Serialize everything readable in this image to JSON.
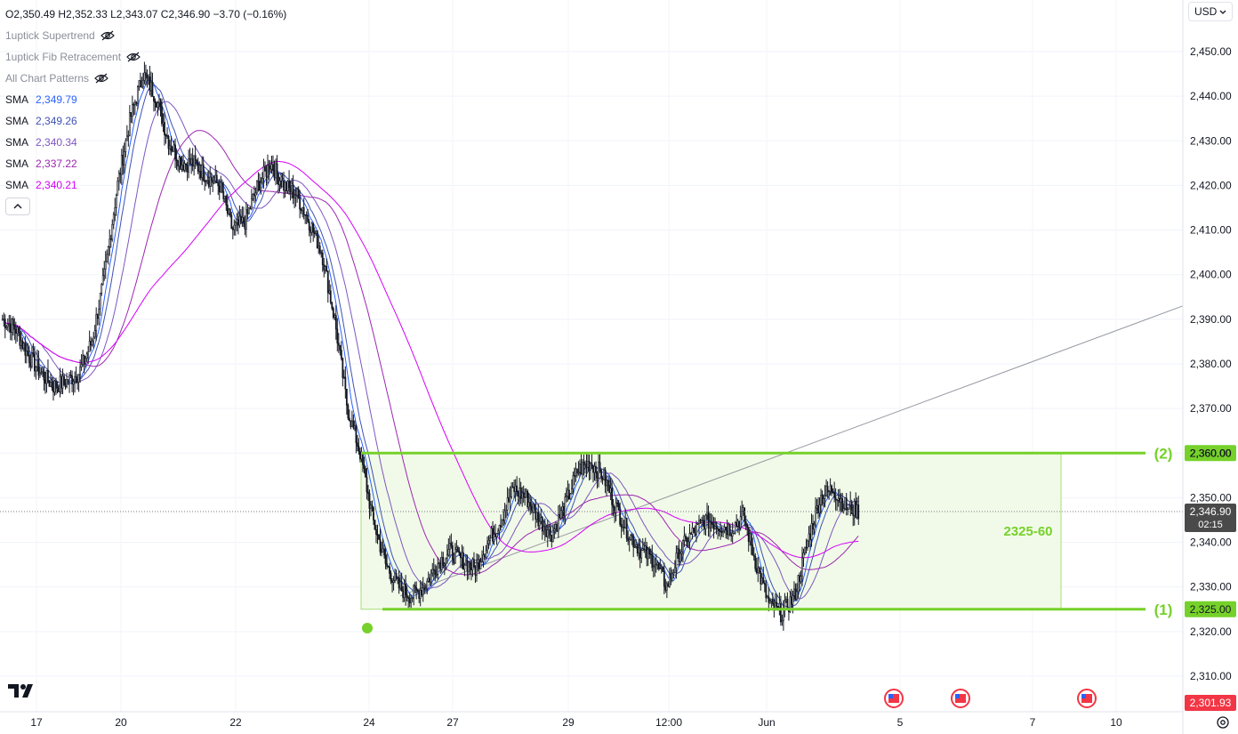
{
  "header": {
    "ohlc": "O2,350.49  H2,352.33  L2,343.07  C2,346.90  −3.70 (−0.16%)",
    "indicators": [
      "1uptick Supertrend",
      "1uptick Fib Retracement",
      "All Chart Patterns"
    ],
    "smas": [
      {
        "label": "SMA",
        "value": "2,349.79",
        "color": "#2962ff"
      },
      {
        "label": "SMA",
        "value": "2,349.26",
        "color": "#3f51b5"
      },
      {
        "label": "SMA",
        "value": "2,340.34",
        "color": "#7e57c2"
      },
      {
        "label": "SMA",
        "value": "2,337.22",
        "color": "#9c27b0"
      },
      {
        "label": "SMA",
        "value": "2,340.21",
        "color": "#d500f9"
      }
    ],
    "collapse_icon": "chevron-up-icon"
  },
  "currency": {
    "value": "USD",
    "icon": "chevron-down-icon"
  },
  "colors": {
    "accent_green": "#76d12a",
    "zone_fill": "#f1fae8",
    "price_label": "#4a4a4a",
    "low_label": "#f23645"
  },
  "chart_data": {
    "type": "candlestick",
    "y_range": [
      2302,
      2457
    ],
    "y_ticks": [
      "2,310.00",
      "2,320.00",
      "2,330.00",
      "2,340.00",
      "2,350.00",
      "2,360.00",
      "2,370.00",
      "2,380.00",
      "2,390.00",
      "2,400.00",
      "2,410.00",
      "2,420.00",
      "2,430.00",
      "2,440.00",
      "2,450.00"
    ],
    "y_tick_values": [
      2310,
      2320,
      2330,
      2340,
      2350,
      2360,
      2370,
      2380,
      2390,
      2400,
      2410,
      2420,
      2430,
      2440,
      2450
    ],
    "x_labels": [
      "17",
      "20",
      "22",
      "24",
      "27",
      "29",
      "12:00",
      "Jun",
      "5",
      "7",
      "10"
    ],
    "close_path": [
      2390,
      2388,
      2382,
      2378,
      2375,
      2376,
      2378,
      2385,
      2400,
      2420,
      2435,
      2445,
      2440,
      2430,
      2425,
      2425,
      2422,
      2420,
      2410,
      2412,
      2420,
      2425,
      2420,
      2418,
      2412,
      2405,
      2390,
      2370,
      2360,
      2345,
      2335,
      2330,
      2328,
      2330,
      2335,
      2338,
      2336,
      2334,
      2340,
      2345,
      2352,
      2350,
      2345,
      2342,
      2348,
      2356,
      2358,
      2355,
      2348,
      2342,
      2338,
      2336,
      2330,
      2338,
      2342,
      2345,
      2344,
      2343,
      2346,
      2335,
      2326,
      2324,
      2328,
      2340,
      2350,
      2352,
      2348,
      2347
    ],
    "zone": {
      "top": 2360,
      "bottom": 2325,
      "label": "2325-60"
    },
    "levels": [
      {
        "value": 2360,
        "label": "(2)",
        "price": "2,360.00"
      },
      {
        "value": 2325,
        "label": "(1)",
        "price": "2,325.00"
      }
    ],
    "current_price": {
      "value": 2346.9,
      "label": "2,346.90",
      "countdown": "02:15"
    },
    "low_price": {
      "value": 2301.93,
      "label": "2,301.93"
    },
    "trendline": {
      "start": 2328,
      "end": 2393
    },
    "events": [
      "us-flag-icon",
      "us-flag-icon",
      "us-flag-icon"
    ],
    "alert_icon": "alarm-icon"
  }
}
